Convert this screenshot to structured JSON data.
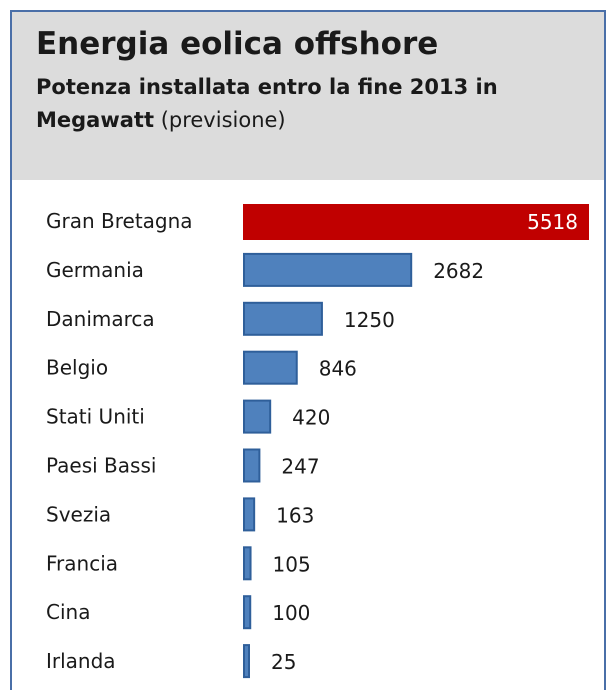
{
  "chart_data": {
    "type": "bar",
    "orientation": "horizontal",
    "title": "Energia eolica offshore",
    "subtitle_bold": "Potenza installata entro la fine 2013 in Megawatt",
    "subtitle_normal": "(previsione)",
    "categories": [
      "Gran Bretagna",
      "Germania",
      "Danimarca",
      "Belgio",
      "Stati Uniti",
      "Paesi Bassi",
      "Svezia",
      "Francia",
      "Cina",
      "Irlanda"
    ],
    "values": [
      5518,
      2682,
      1250,
      846,
      420,
      247,
      163,
      105,
      100,
      25
    ],
    "value_labels": [
      "5518",
      "2682",
      "1250",
      "846",
      "420",
      "247",
      "163",
      "105",
      "100",
      "25"
    ],
    "highlight_index": 0,
    "colors": {
      "highlight": "#c00000",
      "bar": "#4f81bd",
      "bar_border": "#2f5f9a",
      "header_bg": "#dcdcdc",
      "frame": "#4a6fa8"
    },
    "xlim": [
      0,
      5518
    ],
    "grid": false,
    "legend": "none"
  }
}
